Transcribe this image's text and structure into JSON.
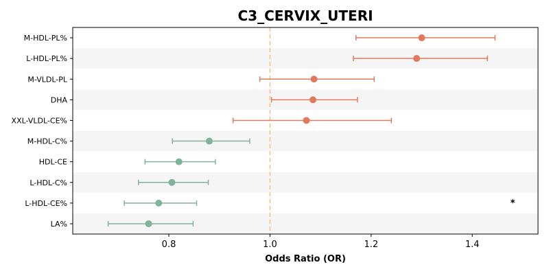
{
  "chart_data": {
    "type": "forest",
    "title": "C3_CERVIX_UTERI",
    "xlabel": "Odds Ratio (OR)",
    "xlim": [
      0.61,
      1.53
    ],
    "xticks": [
      0.8,
      1.0,
      1.2,
      1.4
    ],
    "xtick_labels": [
      "0.8",
      "1.0",
      "1.2",
      "1.4"
    ],
    "reference_line": 1.0,
    "reference_line_color": "#f5c07a",
    "categories": [
      "M-HDL-PL%",
      "L-HDL-PL%",
      "M-VLDL-PL",
      "DHA",
      "XXL-VLDL-CE%",
      "M-HDL-C%",
      "HDL-CE",
      "L-HDL-C%",
      "L-HDL-CE%",
      "LA%"
    ],
    "odds_ratio": [
      1.3,
      1.29,
      1.087,
      1.085,
      1.072,
      0.88,
      0.82,
      0.806,
      0.78,
      0.76
    ],
    "ci_lower": [
      1.17,
      1.165,
      0.98,
      1.003,
      0.927,
      0.807,
      0.753,
      0.74,
      0.712,
      0.68
    ],
    "ci_upper": [
      1.445,
      1.43,
      1.206,
      1.173,
      1.24,
      0.96,
      0.892,
      0.878,
      0.855,
      0.848
    ],
    "point_colors": [
      "#e07a5f",
      "#e07a5f",
      "#e07a5f",
      "#e07a5f",
      "#e07a5f",
      "#81b29a",
      "#81b29a",
      "#81b29a",
      "#81b29a",
      "#81b29a"
    ],
    "annotations": [
      {
        "category": "L-HDL-CE%",
        "x": 1.48,
        "text": "*"
      }
    ],
    "grid": false,
    "row_shading": [
      "#ffffff",
      "#f5f5f5"
    ]
  }
}
